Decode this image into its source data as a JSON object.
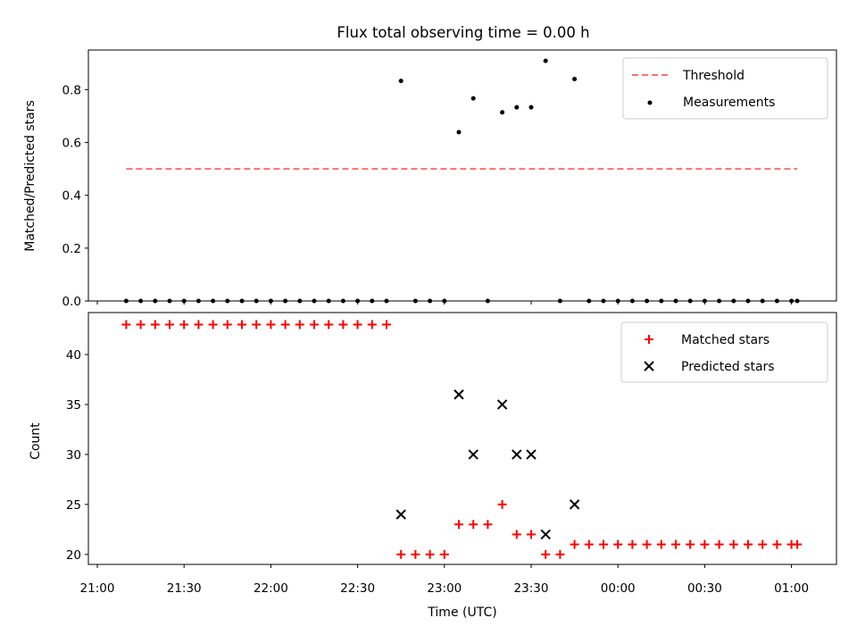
{
  "chart_data": [
    {
      "type": "scatter",
      "title": "Flux total observing time = 0.00 h",
      "xlabel": "",
      "ylabel": "Matched/Predicted stars",
      "ylim": [
        0.0,
        0.95
      ],
      "yticks": [
        "0.0",
        "0.2",
        "0.4",
        "0.6",
        "0.8"
      ],
      "legend_position": "top-right",
      "threshold": {
        "name": "Threshold",
        "value": 0.5,
        "x_start": "21:10",
        "x_end": "01:02",
        "color": "#ff7070"
      },
      "series": [
        {
          "name": "Measurements",
          "color": "#000000",
          "x": [
            "21:10",
            "21:15",
            "21:20",
            "21:25",
            "21:30",
            "21:35",
            "21:40",
            "21:45",
            "21:50",
            "21:55",
            "22:00",
            "22:05",
            "22:10",
            "22:15",
            "22:20",
            "22:25",
            "22:30",
            "22:35",
            "22:40",
            "22:45",
            "22:50",
            "22:55",
            "23:00",
            "23:05",
            "23:10",
            "23:15",
            "23:20",
            "23:25",
            "23:30",
            "23:35",
            "23:40",
            "23:45",
            "23:50",
            "23:55",
            "00:00",
            "00:05",
            "00:10",
            "00:15",
            "00:20",
            "00:25",
            "00:30",
            "00:35",
            "00:40",
            "00:45",
            "00:50",
            "00:55",
            "01:00",
            "01:02"
          ],
          "y": [
            0,
            0,
            0,
            0,
            0,
            0,
            0,
            0,
            0,
            0,
            0,
            0,
            0,
            0,
            0,
            0,
            0,
            0,
            0,
            0.833,
            0,
            0,
            0,
            0.639,
            0.767,
            0,
            0.714,
            0.733,
            0.733,
            0.909,
            0,
            0.84,
            0,
            0,
            0,
            0,
            0,
            0,
            0,
            0,
            0,
            0,
            0,
            0,
            0,
            0,
            0,
            0
          ]
        }
      ]
    },
    {
      "type": "scatter",
      "title": "",
      "xlabel": "Time (UTC)",
      "ylabel": "Count",
      "ylim": [
        19,
        44.2
      ],
      "yticks": [
        "20",
        "25",
        "30",
        "35",
        "40"
      ],
      "xticks": [
        "21:00",
        "21:30",
        "22:00",
        "22:30",
        "23:00",
        "23:30",
        "00:00",
        "00:30",
        "01:00"
      ],
      "legend_position": "top-right",
      "series": [
        {
          "name": "Matched stars",
          "marker": "plus",
          "color": "#ff0000",
          "x": [
            "21:10",
            "21:15",
            "21:20",
            "21:25",
            "21:30",
            "21:35",
            "21:40",
            "21:45",
            "21:50",
            "21:55",
            "22:00",
            "22:05",
            "22:10",
            "22:15",
            "22:20",
            "22:25",
            "22:30",
            "22:35",
            "22:40",
            "22:45",
            "22:50",
            "22:55",
            "23:00",
            "23:05",
            "23:10",
            "23:15",
            "23:20",
            "23:25",
            "23:30",
            "23:35",
            "23:40",
            "23:45",
            "23:50",
            "23:55",
            "00:00",
            "00:05",
            "00:10",
            "00:15",
            "00:20",
            "00:25",
            "00:30",
            "00:35",
            "00:40",
            "00:45",
            "00:50",
            "00:55",
            "01:00",
            "01:02"
          ],
          "y": [
            43,
            43,
            43,
            43,
            43,
            43,
            43,
            43,
            43,
            43,
            43,
            43,
            43,
            43,
            43,
            43,
            43,
            43,
            43,
            20,
            20,
            20,
            20,
            23,
            23,
            23,
            25,
            22,
            22,
            20,
            20,
            21,
            21,
            21,
            21,
            21,
            21,
            21,
            21,
            21,
            21,
            21,
            21,
            21,
            21,
            21,
            21,
            21
          ]
        },
        {
          "name": "Predicted stars",
          "marker": "x",
          "color": "#000000",
          "x": [
            "22:45",
            "23:05",
            "23:10",
            "23:20",
            "23:25",
            "23:30",
            "23:35",
            "23:45"
          ],
          "y": [
            24,
            36,
            30,
            35,
            30,
            30,
            22,
            25
          ]
        }
      ]
    }
  ]
}
